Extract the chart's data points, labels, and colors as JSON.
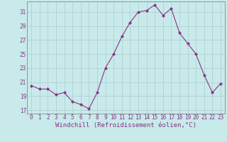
{
  "x": [
    0,
    1,
    2,
    3,
    4,
    5,
    6,
    7,
    8,
    9,
    10,
    11,
    12,
    13,
    14,
    15,
    16,
    17,
    18,
    19,
    20,
    21,
    22,
    23
  ],
  "y": [
    20.5,
    20.0,
    20.0,
    19.2,
    19.5,
    18.2,
    17.8,
    17.2,
    19.5,
    23.0,
    25.0,
    27.5,
    29.5,
    31.0,
    31.2,
    32.0,
    30.5,
    31.5,
    28.0,
    26.5,
    25.0,
    22.0,
    19.5,
    20.8
  ],
  "line_color": "#883388",
  "marker": "D",
  "marker_size": 2,
  "plot_bg_color": "#c8eaea",
  "fig_bg_color": "#c8eaea",
  "grid_color": "#aacccc",
  "spine_color": "#888888",
  "tick_color": "#883388",
  "xlabel": "Windchill (Refroidissement éolien,°C)",
  "xlabel_color": "#883388",
  "bottom_bar_color": "#8800aa",
  "xlim": [
    -0.5,
    23.5
  ],
  "ylim": [
    16.5,
    32.5
  ],
  "yticks": [
    17,
    19,
    21,
    23,
    25,
    27,
    29,
    31
  ],
  "xtick_labels": [
    "0",
    "1",
    "2",
    "3",
    "4",
    "5",
    "6",
    "7",
    "8",
    "9",
    "10",
    "11",
    "12",
    "13",
    "14",
    "15",
    "16",
    "17",
    "18",
    "19",
    "20",
    "21",
    "22",
    "23"
  ],
  "tick_fontsize": 5.5,
  "xlabel_fontsize": 6.5
}
